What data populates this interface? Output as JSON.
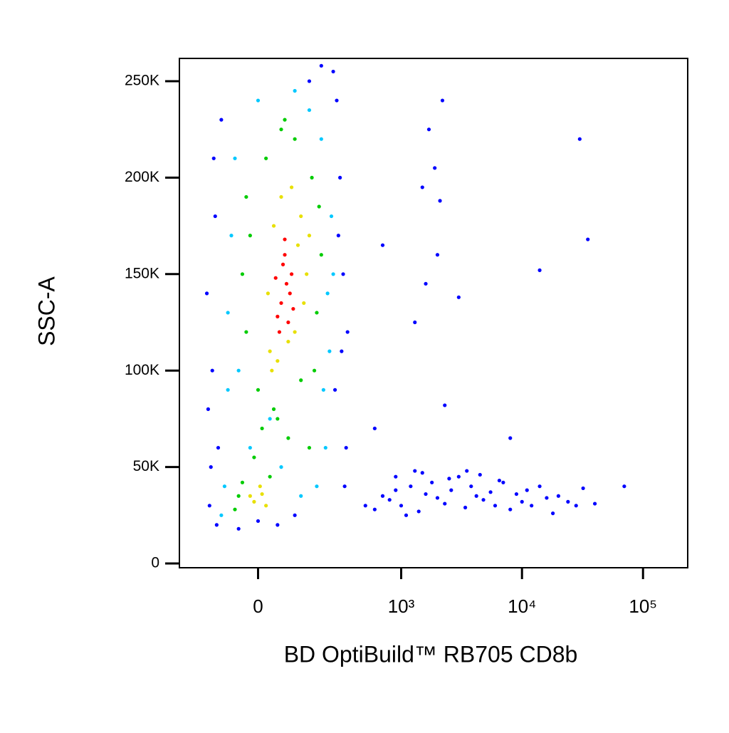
{
  "chart_data": {
    "type": "scatter",
    "x_label": "BD OptiBuild™ RB705 CD8b",
    "y_label": "SSC-A",
    "xscale": "biexponential",
    "xlim": [
      -280,
      234000
    ],
    "ylim": [
      -2200,
      261800
    ],
    "xticks": [
      {
        "value": 0,
        "label": "0"
      },
      {
        "value": 1000,
        "label": "10³"
      },
      {
        "value": 10000,
        "label": "10⁴"
      },
      {
        "value": 100000,
        "label": "10⁵"
      }
    ],
    "yticks": [
      0,
      {
        "value": 50000,
        "label": "50K"
      },
      {
        "value": 100000,
        "label": "100K"
      },
      {
        "value": 150000,
        "label": "150K"
      },
      {
        "value": 200000,
        "label": "200K"
      },
      {
        "value": 250000,
        "label": "250K"
      }
    ],
    "series": [
      {
        "color": "#0000ff",
        "x": [
          -150,
          -130,
          -120,
          -110,
          -140,
          300,
          320,
          280,
          350,
          -125,
          -145,
          270,
          290,
          310,
          -100,
          -115,
          340,
          260,
          -135,
          330,
          0,
          50,
          100,
          150,
          200,
          -50,
          500,
          600,
          700,
          800,
          900,
          1000,
          1200,
          1400,
          1600,
          1800,
          2000,
          2300,
          2600,
          3000,
          3400,
          3800,
          4200,
          4800,
          5500,
          6000,
          7000,
          8000,
          9000,
          10000,
          11000,
          12000,
          14000,
          16000,
          18000,
          20000,
          24000,
          28000,
          32000,
          40000,
          70000,
          1500,
          2500,
          3500,
          4500,
          6500,
          900,
          1100,
          1300,
          700,
          1300,
          2000,
          2200,
          1500,
          1600,
          3000,
          1900,
          1700,
          600,
          2100,
          30000,
          35000,
          14000,
          8000,
          2300
        ],
        "values": [
          140000,
          100000,
          180000,
          60000,
          30000,
          200000,
          150000,
          240000,
          120000,
          210000,
          80000,
          90000,
          170000,
          110000,
          230000,
          20000,
          60000,
          255000,
          50000,
          40000,
          22000,
          20000,
          25000,
          250000,
          258000,
          18000,
          30000,
          28000,
          35000,
          33000,
          38000,
          30000,
          40000,
          27000,
          36000,
          42000,
          34000,
          31000,
          38000,
          45000,
          29000,
          40000,
          35000,
          33000,
          37000,
          30000,
          42000,
          28000,
          36000,
          32000,
          38000,
          30000,
          40000,
          34000,
          26000,
          35000,
          32000,
          30000,
          39000,
          31000,
          40000,
          47000,
          44000,
          48000,
          46000,
          43000,
          45000,
          25000,
          48000,
          165000,
          125000,
          160000,
          240000,
          195000,
          145000,
          138000,
          205000,
          225000,
          70000,
          188000,
          220000,
          168000,
          152000,
          65000,
          82000
        ]
      },
      {
        "color": "#00c8ff",
        "x": [
          -80,
          -70,
          230,
          250,
          -90,
          210,
          -60,
          240,
          -50,
          0,
          100,
          150,
          220,
          -100,
          -20,
          60,
          200,
          180,
          -80,
          260,
          120,
          30
        ],
        "values": [
          130000,
          170000,
          140000,
          180000,
          40000,
          90000,
          210000,
          110000,
          100000,
          240000,
          245000,
          235000,
          60000,
          25000,
          60000,
          50000,
          220000,
          40000,
          90000,
          150000,
          35000,
          75000
        ]
      },
      {
        "color": "#00cc00",
        "x": [
          -40,
          -30,
          180,
          160,
          0,
          20,
          170,
          -20,
          200,
          10,
          -50,
          60,
          150,
          100,
          40,
          -60,
          -10,
          30,
          190,
          120,
          70,
          -30,
          80,
          -40,
          50
        ],
        "values": [
          150000,
          120000,
          130000,
          200000,
          90000,
          210000,
          100000,
          170000,
          160000,
          70000,
          35000,
          225000,
          60000,
          220000,
          80000,
          28000,
          55000,
          45000,
          185000,
          95000,
          230000,
          190000,
          65000,
          42000,
          75000
        ]
      },
      {
        "color": "#e8e000",
        "x": [
          30,
          120,
          100,
          40,
          140,
          25,
          110,
          60,
          130,
          35,
          -10,
          10,
          20,
          -20,
          5,
          90,
          50,
          150,
          80
        ],
        "values": [
          110000,
          180000,
          120000,
          175000,
          150000,
          140000,
          165000,
          190000,
          135000,
          100000,
          32000,
          36000,
          30000,
          35000,
          40000,
          195000,
          105000,
          170000,
          115000
        ]
      },
      {
        "color": "#ff0000",
        "x": [
          60,
          75,
          50,
          90,
          70,
          85,
          55,
          65,
          95,
          80,
          45,
          70
        ],
        "values": [
          135000,
          145000,
          128000,
          150000,
          160000,
          140000,
          120000,
          155000,
          132000,
          125000,
          148000,
          168000
        ]
      }
    ]
  }
}
